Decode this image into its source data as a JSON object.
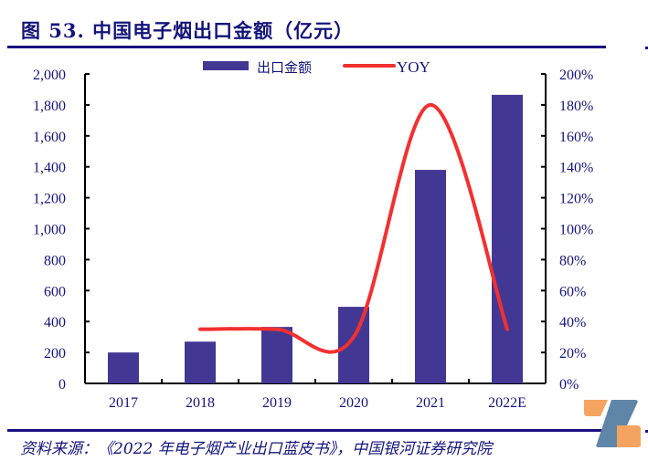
{
  "title": "图 53. 中国电子烟出口金额（亿元）",
  "source": "资料来源：《2022 年电子烟产业出口蓝皮书》，中国银河证券研究院",
  "colors": {
    "bar": "#433794",
    "line": "#f23030",
    "axis_text": "#14147a",
    "rule": "#1a0f80",
    "logo_orange": "#f4a460",
    "logo_blue": "#5f86a8"
  },
  "chart_data": {
    "type": "bar+line",
    "title": "中国电子烟出口金额（亿元）",
    "categories": [
      "2017",
      "2018",
      "2019",
      "2020",
      "2021",
      "2022E"
    ],
    "series": [
      {
        "name": "出口金额",
        "type": "bar",
        "axis": "left",
        "values": [
          200,
          270,
          365,
          495,
          1380,
          1865
        ]
      },
      {
        "name": "YOY",
        "type": "line",
        "axis": "right",
        "values": [
          null,
          35,
          35,
          30,
          180,
          35
        ]
      }
    ],
    "left_axis": {
      "ylim": [
        0,
        2000
      ],
      "ticks": [
        "0",
        "200",
        "400",
        "600",
        "800",
        "1,000",
        "1,200",
        "1,400",
        "1,600",
        "1,800",
        "2,000"
      ]
    },
    "right_axis": {
      "ylim": [
        0,
        200
      ],
      "ticks": [
        "0%",
        "20%",
        "40%",
        "60%",
        "80%",
        "100%",
        "120%",
        "140%",
        "160%",
        "180%",
        "200%"
      ]
    },
    "legend": {
      "placement": "top-center",
      "entries": [
        "出口金额",
        "YOY"
      ]
    },
    "grid": false
  }
}
